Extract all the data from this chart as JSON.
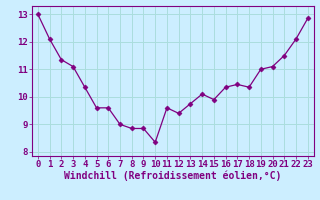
{
  "x": [
    0,
    1,
    2,
    3,
    4,
    5,
    6,
    7,
    8,
    9,
    10,
    11,
    12,
    13,
    14,
    15,
    16,
    17,
    18,
    19,
    20,
    21,
    22,
    23
  ],
  "y": [
    13.0,
    12.1,
    11.35,
    11.1,
    10.35,
    9.6,
    9.6,
    9.0,
    8.85,
    8.85,
    8.35,
    9.6,
    9.4,
    9.75,
    10.1,
    9.9,
    10.35,
    10.45,
    10.35,
    11.0,
    11.1,
    11.5,
    12.1,
    12.85
  ],
  "line_color": "#800080",
  "marker": "D",
  "marker_size": 2.5,
  "bg_color": "#cceeff",
  "grid_color": "#aadddd",
  "xlabel": "Windchill (Refroidissement éolien,°C)",
  "xlim": [
    -0.5,
    23.5
  ],
  "ylim": [
    7.85,
    13.3
  ],
  "yticks": [
    8,
    9,
    10,
    11,
    12,
    13
  ],
  "xticks": [
    0,
    1,
    2,
    3,
    4,
    5,
    6,
    7,
    8,
    9,
    10,
    11,
    12,
    13,
    14,
    15,
    16,
    17,
    18,
    19,
    20,
    21,
    22,
    23
  ],
  "tick_label_fontsize": 6.5,
  "xlabel_fontsize": 7.0,
  "label_color": "#800080"
}
